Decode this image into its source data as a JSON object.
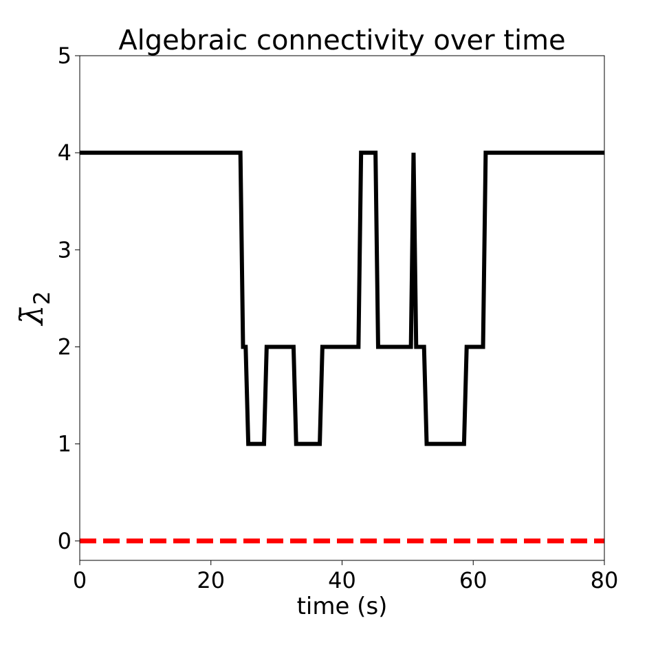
{
  "chart_data": {
    "type": "line",
    "title": "Algebraic connectivity over time",
    "xlabel": "time (s)",
    "ylabel_symbol": "λ̄",
    "ylabel_subscript": "2",
    "xlim": [
      0,
      80
    ],
    "ylim": [
      -0.2,
      5
    ],
    "xticks": [
      0,
      20,
      40,
      60,
      80
    ],
    "yticks": [
      0,
      1,
      2,
      3,
      4,
      5
    ],
    "grid": false,
    "series": [
      {
        "color": "#000000",
        "style": "solid",
        "x": [
          0,
          24.5,
          24.9,
          25.3,
          25.7,
          28.1,
          28.5,
          32.6,
          33.0,
          36.6,
          37.0,
          42.5,
          42.9,
          45.1,
          45.5,
          50.5,
          50.9,
          51.3,
          52.5,
          52.9,
          58.6,
          59.0,
          61.5,
          61.9,
          80
        ],
        "y": [
          4,
          4,
          2,
          2,
          1,
          1,
          2,
          2,
          1,
          1,
          2,
          2,
          4,
          4,
          2,
          2,
          4,
          2,
          2,
          1,
          1,
          2,
          2,
          4,
          4
        ]
      },
      {
        "color": "#ff0000",
        "style": "dashed",
        "x": [
          0,
          80
        ],
        "y": [
          0,
          0
        ]
      }
    ]
  }
}
